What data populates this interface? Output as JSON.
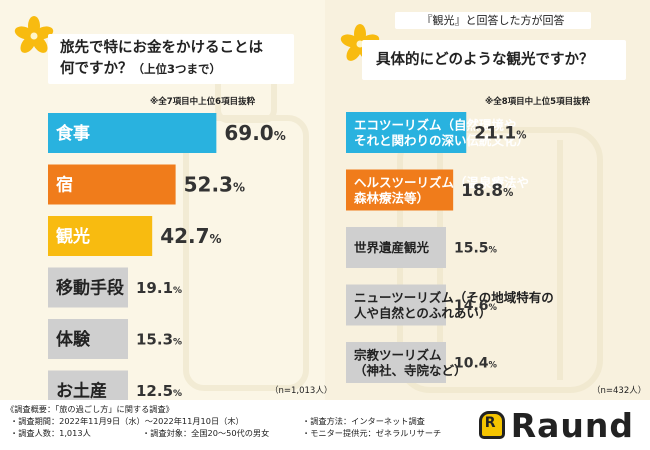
{
  "left": {
    "question_main": "旅先で特にお金をかけることは",
    "question_line2": "何ですか？",
    "question_sub": "（上位3つまで）",
    "note": "※全7項目中上位6項目抜粋",
    "sample": "（n=1,013人）"
  },
  "right": {
    "tag": "『観光』と回答した方が回答",
    "question_main": "具体的にどのような観光ですか？",
    "note": "※全8項目中上位5項目抜粋",
    "sample": "（n=432人）"
  },
  "footer": {
    "title": "《調査概要：「旅の過ごし方」に関する調査》",
    "period": "・調査期間：2022年11月9日（水）〜2022年11月10日（木）",
    "method": "・調査方法：インターネット調査",
    "people": "・調査人数：1,013人",
    "target": "・調査対象：全国20〜50代の男女",
    "provider": "・モニター提供元：ゼネラルリサーチ"
  },
  "logo": {
    "text": "Raund",
    "mark": "R"
  },
  "colors": {
    "blue": "#29b2df",
    "orange": "#f07c1b",
    "yellow": "#f8bb10",
    "gray": "#cfcfcf",
    "background": "#fbf6e6"
  },
  "chart_data": [
    {
      "type": "bar",
      "orientation": "horizontal",
      "title": "旅先で特にお金をかけることは何ですか？（上位3つまで）",
      "unit": "%",
      "xlim": [
        0,
        100
      ],
      "categories": [
        "食事",
        "宿",
        "観光",
        "移動手段",
        "体験",
        "お土産"
      ],
      "values": [
        69.0,
        52.3,
        42.7,
        19.1,
        15.3,
        12.5
      ],
      "colors": [
        "#29b2df",
        "#f07c1b",
        "#f8bb10",
        "#cfcfcf",
        "#cfcfcf",
        "#cfcfcf"
      ]
    },
    {
      "type": "bar",
      "orientation": "horizontal",
      "title": "具体的にどのような観光ですか？",
      "unit": "%",
      "xlim": [
        0,
        100
      ],
      "categories": [
        [
          "エコツーリズム（自然環境や",
          "それと関わりの深い伝統文化）"
        ],
        [
          "ヘルスツーリズム（温泉療法や",
          "森林療法等）"
        ],
        [
          "世界遺産観光"
        ],
        [
          "ニューツーリズム（その地域特有の",
          "人や自然とのふれあい）"
        ],
        [
          "宗教ツーリズム",
          "（神社、寺院など）"
        ]
      ],
      "values": [
        21.1,
        18.8,
        15.5,
        14.6,
        10.4
      ],
      "colors": [
        "#29b2df",
        "#f07c1b",
        "#cfcfcf",
        "#cfcfcf",
        "#cfcfcf"
      ]
    }
  ]
}
